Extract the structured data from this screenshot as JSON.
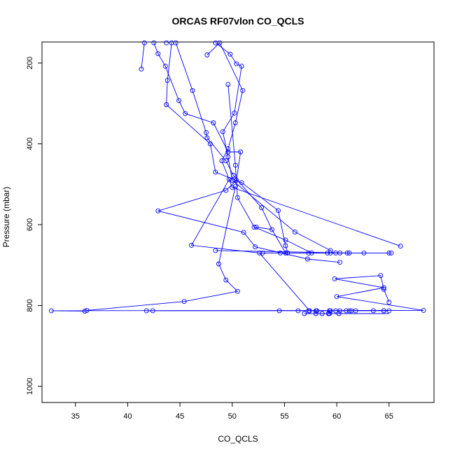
{
  "chart_data": {
    "type": "scatter",
    "title": "ORCAS RF07vlon CO_QCLS",
    "xlabel": "CO_QCLS",
    "ylabel": "Pressure (mbar)",
    "xlim": [
      31.8,
      69.3
    ],
    "ylim": [
      1040,
      148
    ],
    "y_inverted": true,
    "x_ticks": [
      35,
      40,
      45,
      50,
      55,
      60,
      65
    ],
    "y_ticks": [
      200,
      400,
      600,
      800,
      1000
    ],
    "grid": false,
    "legend": "none",
    "series": [
      {
        "color": "#0000ff",
        "marker": "open-circle",
        "points": [
          [
            41.6,
            150
          ],
          [
            42.5,
            150
          ],
          [
            43.7,
            150
          ],
          [
            44.2,
            150
          ],
          [
            44.6,
            150
          ],
          [
            48.4,
            150
          ],
          [
            48.8,
            150
          ],
          [
            41.3,
            215
          ],
          [
            42.9,
            177
          ],
          [
            43.6,
            208
          ],
          [
            43.8,
            243
          ],
          [
            43.7,
            303
          ],
          [
            44.9,
            293
          ],
          [
            45.5,
            325
          ],
          [
            46.2,
            268
          ],
          [
            47.6,
            180
          ],
          [
            49.8,
            178
          ],
          [
            50.4,
            202
          ],
          [
            50.9,
            208
          ],
          [
            51.0,
            268
          ],
          [
            49.6,
            253
          ],
          [
            50.2,
            324
          ],
          [
            50.3,
            348
          ],
          [
            49.1,
            370
          ],
          [
            47.5,
            372
          ],
          [
            47.6,
            385
          ],
          [
            47.9,
            400
          ],
          [
            48.2,
            348
          ],
          [
            49.6,
            412
          ],
          [
            49.6,
            420
          ],
          [
            50.8,
            420
          ],
          [
            49.6,
            432
          ],
          [
            49.4,
            442
          ],
          [
            49.0,
            442
          ],
          [
            48.4,
            470
          ],
          [
            50.3,
            453
          ],
          [
            50.1,
            478
          ],
          [
            49.7,
            488
          ],
          [
            50.0,
            490
          ],
          [
            50.4,
            490
          ],
          [
            50.9,
            496
          ],
          [
            50.3,
            505
          ],
          [
            50.0,
            508
          ],
          [
            49.4,
            515
          ],
          [
            50.5,
            533
          ],
          [
            52.8,
            558
          ],
          [
            54.4,
            565
          ],
          [
            42.9,
            566
          ],
          [
            52.1,
            606
          ],
          [
            52.3,
            606
          ],
          [
            51.1,
            619
          ],
          [
            53.8,
            612
          ],
          [
            56.0,
            618
          ],
          [
            55.1,
            638
          ],
          [
            55.1,
            652
          ],
          [
            52.2,
            655
          ],
          [
            46.1,
            651
          ],
          [
            48.4,
            664
          ],
          [
            52.6,
            670
          ],
          [
            52.9,
            670
          ],
          [
            54.6,
            670
          ],
          [
            55.1,
            670
          ],
          [
            55.3,
            670
          ],
          [
            57.3,
            670
          ],
          [
            57.6,
            670
          ],
          [
            59.1,
            670
          ],
          [
            59.4,
            670
          ],
          [
            59.9,
            670
          ],
          [
            60.3,
            670
          ],
          [
            61.0,
            670
          ],
          [
            61.2,
            670
          ],
          [
            62.6,
            670
          ],
          [
            65.0,
            670
          ],
          [
            65.2,
            670
          ],
          [
            59.4,
            664
          ],
          [
            66.1,
            653
          ],
          [
            57.2,
            685
          ],
          [
            60.3,
            693
          ],
          [
            48.7,
            697
          ],
          [
            64.2,
            726
          ],
          [
            59.8,
            734
          ],
          [
            49.4,
            737
          ],
          [
            64.5,
            756
          ],
          [
            64.5,
            760
          ],
          [
            50.5,
            765
          ],
          [
            60.0,
            778
          ],
          [
            65.0,
            792
          ],
          [
            45.4,
            790
          ],
          [
            36.1,
            812
          ],
          [
            35.9,
            814
          ],
          [
            32.7,
            813
          ],
          [
            41.8,
            813
          ],
          [
            42.4,
            813
          ],
          [
            54.5,
            813
          ],
          [
            56.3,
            813
          ],
          [
            57.3,
            813
          ],
          [
            58.0,
            813
          ],
          [
            59.3,
            813
          ],
          [
            59.9,
            813
          ],
          [
            60.3,
            813
          ],
          [
            60.9,
            813
          ],
          [
            61.2,
            813
          ],
          [
            61.4,
            813
          ],
          [
            61.8,
            813
          ],
          [
            63.5,
            813
          ],
          [
            64.5,
            813
          ],
          [
            64.5,
            813
          ],
          [
            65.0,
            813
          ],
          [
            68.3,
            812
          ],
          [
            57.4,
            813
          ],
          [
            58.1,
            813
          ],
          [
            59.4,
            813
          ],
          [
            56.9,
            820
          ],
          [
            58.0,
            820
          ],
          [
            58.6,
            820
          ],
          [
            59.2,
            820
          ],
          [
            59.3,
            820
          ],
          [
            60.2,
            820
          ]
        ],
        "segments": [
          [
            [
              41.6,
              150
            ],
            [
              41.3,
              215
            ]
          ],
          [
            [
              42.5,
              150
            ],
            [
              42.9,
              177
            ],
            [
              43.6,
              208
            ],
            [
              44.9,
              293
            ],
            [
              45.5,
              325
            ],
            [
              48.2,
              348
            ],
            [
              49.6,
              420
            ],
            [
              50.8,
              420
            ],
            [
              50.4,
              490
            ],
            [
              49.4,
              515
            ],
            [
              42.9,
              566
            ],
            [
              51.1,
              619
            ],
            [
              52.2,
              655
            ],
            [
              57.2,
              685
            ],
            [
              60.3,
              693
            ]
          ],
          [
            [
              44.2,
              150
            ],
            [
              43.8,
              243
            ],
            [
              43.7,
              303
            ],
            [
              47.9,
              400
            ],
            [
              48.4,
              470
            ],
            [
              50.9,
              496
            ],
            [
              54.4,
              565
            ],
            [
              55.1,
              652
            ],
            [
              55.3,
              670
            ]
          ],
          [
            [
              44.6,
              150
            ],
            [
              46.2,
              268
            ],
            [
              47.5,
              372
            ],
            [
              47.6,
              385
            ],
            [
              49.4,
              442
            ],
            [
              50.1,
              478
            ],
            [
              52.8,
              558
            ],
            [
              53.8,
              612
            ],
            [
              55.1,
              670
            ]
          ],
          [
            [
              48.4,
              150
            ],
            [
              49.8,
              178
            ],
            [
              50.4,
              202
            ],
            [
              50.9,
              208
            ],
            [
              50.2,
              324
            ],
            [
              49.1,
              370
            ],
            [
              49.6,
              432
            ],
            [
              50.0,
              490
            ],
            [
              56.0,
              618
            ],
            [
              59.4,
              664
            ]
          ],
          [
            [
              48.8,
              150
            ],
            [
              51.0,
              268
            ],
            [
              50.3,
              348
            ],
            [
              49.6,
              412
            ],
            [
              49.0,
              442
            ],
            [
              50.0,
              508
            ],
            [
              66.1,
              653
            ]
          ],
          [
            [
              47.6,
              180
            ],
            [
              48.8,
              150
            ]
          ],
          [
            [
              49.6,
              253
            ],
            [
              50.3,
              453
            ],
            [
              50.5,
              533
            ],
            [
              52.1,
              606
            ],
            [
              55.1,
              638
            ],
            [
              57.6,
              670
            ]
          ],
          [
            [
              49.7,
              488
            ],
            [
              46.1,
              651
            ],
            [
              52.6,
              670
            ],
            [
              59.4,
              670
            ],
            [
              65.2,
              670
            ]
          ],
          [
            [
              48.4,
              664
            ],
            [
              61.2,
              670
            ],
            [
              65.0,
              670
            ]
          ],
          [
            [
              50.3,
              505
            ],
            [
              48.7,
              697
            ],
            [
              49.4,
              737
            ],
            [
              50.5,
              765
            ],
            [
              45.4,
              790
            ],
            [
              36.1,
              812
            ],
            [
              35.9,
              814
            ],
            [
              32.7,
              813
            ],
            [
              68.3,
              812
            ],
            [
              60.0,
              778
            ],
            [
              64.5,
              756
            ],
            [
              59.8,
              734
            ],
            [
              64.2,
              726
            ],
            [
              64.5,
              760
            ],
            [
              65.0,
              792
            ]
          ],
          [
            [
              52.3,
              606
            ],
            [
              53.8,
              612
            ]
          ],
          [
            [
              52.9,
              670
            ],
            [
              57.3,
              670
            ]
          ],
          [
            [
              54.6,
              670
            ],
            [
              62.6,
              670
            ]
          ],
          [
            [
              41.8,
              813
            ],
            [
              58.1,
              813
            ]
          ],
          [
            [
              57.4,
              813
            ],
            [
              65.0,
              813
            ]
          ],
          [
            [
              52.6,
              670
            ],
            [
              57.4,
              813
            ]
          ],
          [
            [
              56.9,
              820
            ],
            [
              65.0,
              820
            ]
          ]
        ]
      }
    ]
  }
}
